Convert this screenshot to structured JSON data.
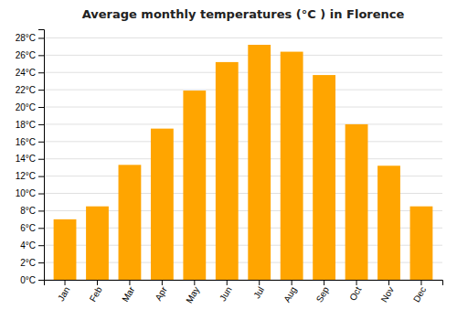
{
  "chart_data": {
    "type": "bar",
    "title": "Average monthly temperatures (°C ) in Florence",
    "categories": [
      "Jan",
      "Feb",
      "Mar",
      "Apr",
      "May",
      "Jun",
      "Jul",
      "Aug",
      "Sep",
      "Oct",
      "Nov",
      "Dec"
    ],
    "values": [
      7.0,
      8.5,
      13.3,
      17.5,
      21.9,
      25.2,
      27.2,
      26.4,
      23.7,
      18.0,
      13.2,
      8.5
    ],
    "color": "#FFA500",
    "ylim": [
      0,
      29
    ],
    "yticks": [
      {
        "value": 0,
        "label": "0°C"
      },
      {
        "value": 2,
        "label": "2°C"
      },
      {
        "value": 4,
        "label": "4°C"
      },
      {
        "value": 6,
        "label": "6°C"
      },
      {
        "value": 8,
        "label": "8°C"
      },
      {
        "value": 10,
        "label": "10°C"
      },
      {
        "value": 12,
        "label": "12°C"
      },
      {
        "value": 14,
        "label": "14°C"
      },
      {
        "value": 16,
        "label": "16°C"
      },
      {
        "value": 18,
        "label": "18°C"
      },
      {
        "value": 20,
        "label": "20°C"
      },
      {
        "value": 22,
        "label": "22°C"
      },
      {
        "value": 24,
        "label": "24°C"
      },
      {
        "value": 26,
        "label": "26°C"
      },
      {
        "value": 28,
        "label": "28°C"
      }
    ],
    "grid": true
  }
}
